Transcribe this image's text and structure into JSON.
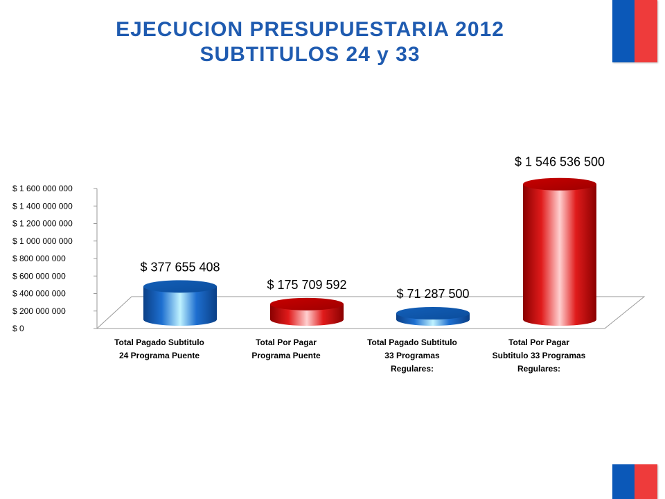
{
  "title": [
    "EJECUCION PRESUPUESTARIA 2012",
    "SUBTITULOS 24 y 33"
  ],
  "flag_colors": {
    "blue": "#0b58b8",
    "red": "#ee3b3b"
  },
  "chart_data": {
    "type": "bar",
    "style": "3d-cylinder",
    "categories": [
      [
        "Total Pagado Subtitulo",
        "24 Programa Puente"
      ],
      [
        "Total Por Pagar",
        "Programa Puente"
      ],
      [
        "Total Pagado Subtitulo",
        "33 Programas",
        "Regulares:"
      ],
      [
        "Total Por Pagar",
        "Subtitulo 33 Programas",
        "Regulares:"
      ]
    ],
    "values": [
      377655408,
      175709592,
      71287500,
      1546536500
    ],
    "data_labels": [
      "$ 377 655 408",
      "$ 175 709 592",
      "$ 71 287 500",
      "$ 1 546 536 500"
    ],
    "colors": [
      "#1e6fd0",
      "#e01b1b",
      "#1e6fd0",
      "#e01b1b"
    ],
    "ylim": [
      0,
      1600000000
    ],
    "yticks": [
      0,
      200000000,
      400000000,
      600000000,
      800000000,
      1000000000,
      1200000000,
      1400000000,
      1600000000
    ],
    "ytick_labels": [
      "$ 0",
      "$ 200 000 000",
      "$ 400 000 000",
      "$ 600 000 000",
      "$ 800 000 000",
      "$ 1 000 000 000",
      "$ 1 200 000 000",
      "$ 1 400 000 000",
      "$ 1 600 000 000"
    ],
    "xlabel": "",
    "ylabel": "",
    "grid": false,
    "legend": false
  }
}
